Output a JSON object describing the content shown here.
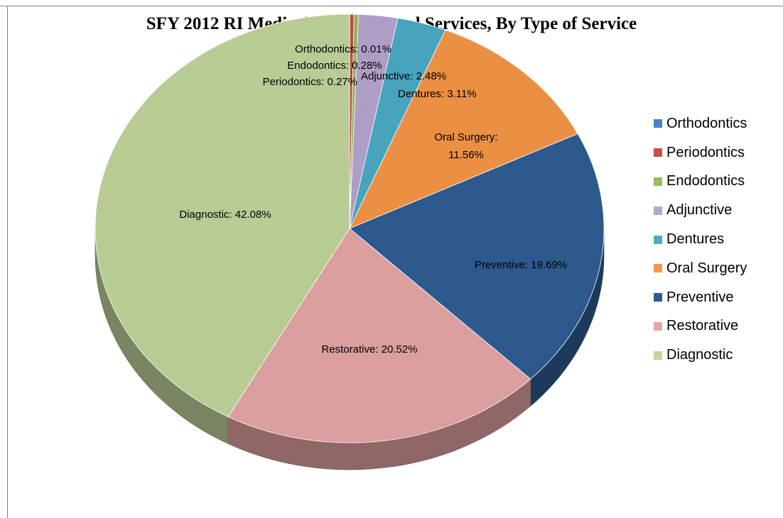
{
  "chart_data": {
    "type": "pie",
    "title": "SFY 2012 RI Medicaid Adult Dental Services, By Type of Service",
    "slices": [
      {
        "name": "Orthodontics",
        "value": 0.01,
        "label": "Orthodontics: 0.01%",
        "color": "#4F81BD"
      },
      {
        "name": "Periodontics",
        "value": 0.27,
        "label": "Periodontics: 0.27%",
        "color": "#C0504D"
      },
      {
        "name": "Endodontics",
        "value": 0.28,
        "label": "Endodontics: 0.28%",
        "color": "#9BBB59"
      },
      {
        "name": "Adjunctive",
        "value": 2.48,
        "label": "Adjunctive: 2.48%",
        "color": "#B7A6CF"
      },
      {
        "name": "Dentures",
        "value": 3.11,
        "label": "Dentures: 3.11%",
        "color": "#4BACC6"
      },
      {
        "name": "Oral Surgery",
        "value": 11.56,
        "label_lines": [
          "Oral Surgery:",
          "11.56%"
        ],
        "color": "#F79646"
      },
      {
        "name": "Preventive",
        "value": 19.69,
        "label": "Preventive: 19.69%",
        "color": "#2E5D94"
      },
      {
        "name": "Restorative",
        "value": 20.52,
        "label": "Restorative: 20.52%",
        "color": "#E6A6A6"
      },
      {
        "name": "Diagnostic",
        "value": 42.08,
        "label": "Diagnostic: 42.08%",
        "color": "#C2D69B"
      }
    ],
    "legend_position": "right",
    "style": "3d-pie-patterned"
  },
  "legend": {
    "items": [
      "Orthodontics",
      "Periodontics",
      "Endodontics",
      "Adjunctive",
      "Dentures",
      "Oral Surgery",
      "Preventive",
      "Restorative",
      "Diagnostic"
    ]
  }
}
